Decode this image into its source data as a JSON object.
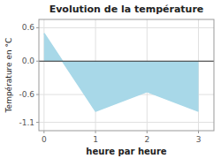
{
  "chart_data": {
    "type": "area",
    "title": "Evolution de la température",
    "xlabel": "heure par heure",
    "ylabel": "Température en °C",
    "x": [
      0,
      1,
      2,
      3
    ],
    "values": [
      0.5,
      -0.9,
      -0.55,
      -0.9
    ],
    "color": "#a8d8e8",
    "xlim": [
      -0.1,
      3.3
    ],
    "ylim": [
      -1.25,
      0.75
    ],
    "xticks": [
      0,
      1,
      2,
      3
    ],
    "yticks": [
      -1.1,
      -0.6,
      {
        "value": 0.0,
        "label": "0.0"
      },
      0.6
    ],
    "grid": true
  }
}
